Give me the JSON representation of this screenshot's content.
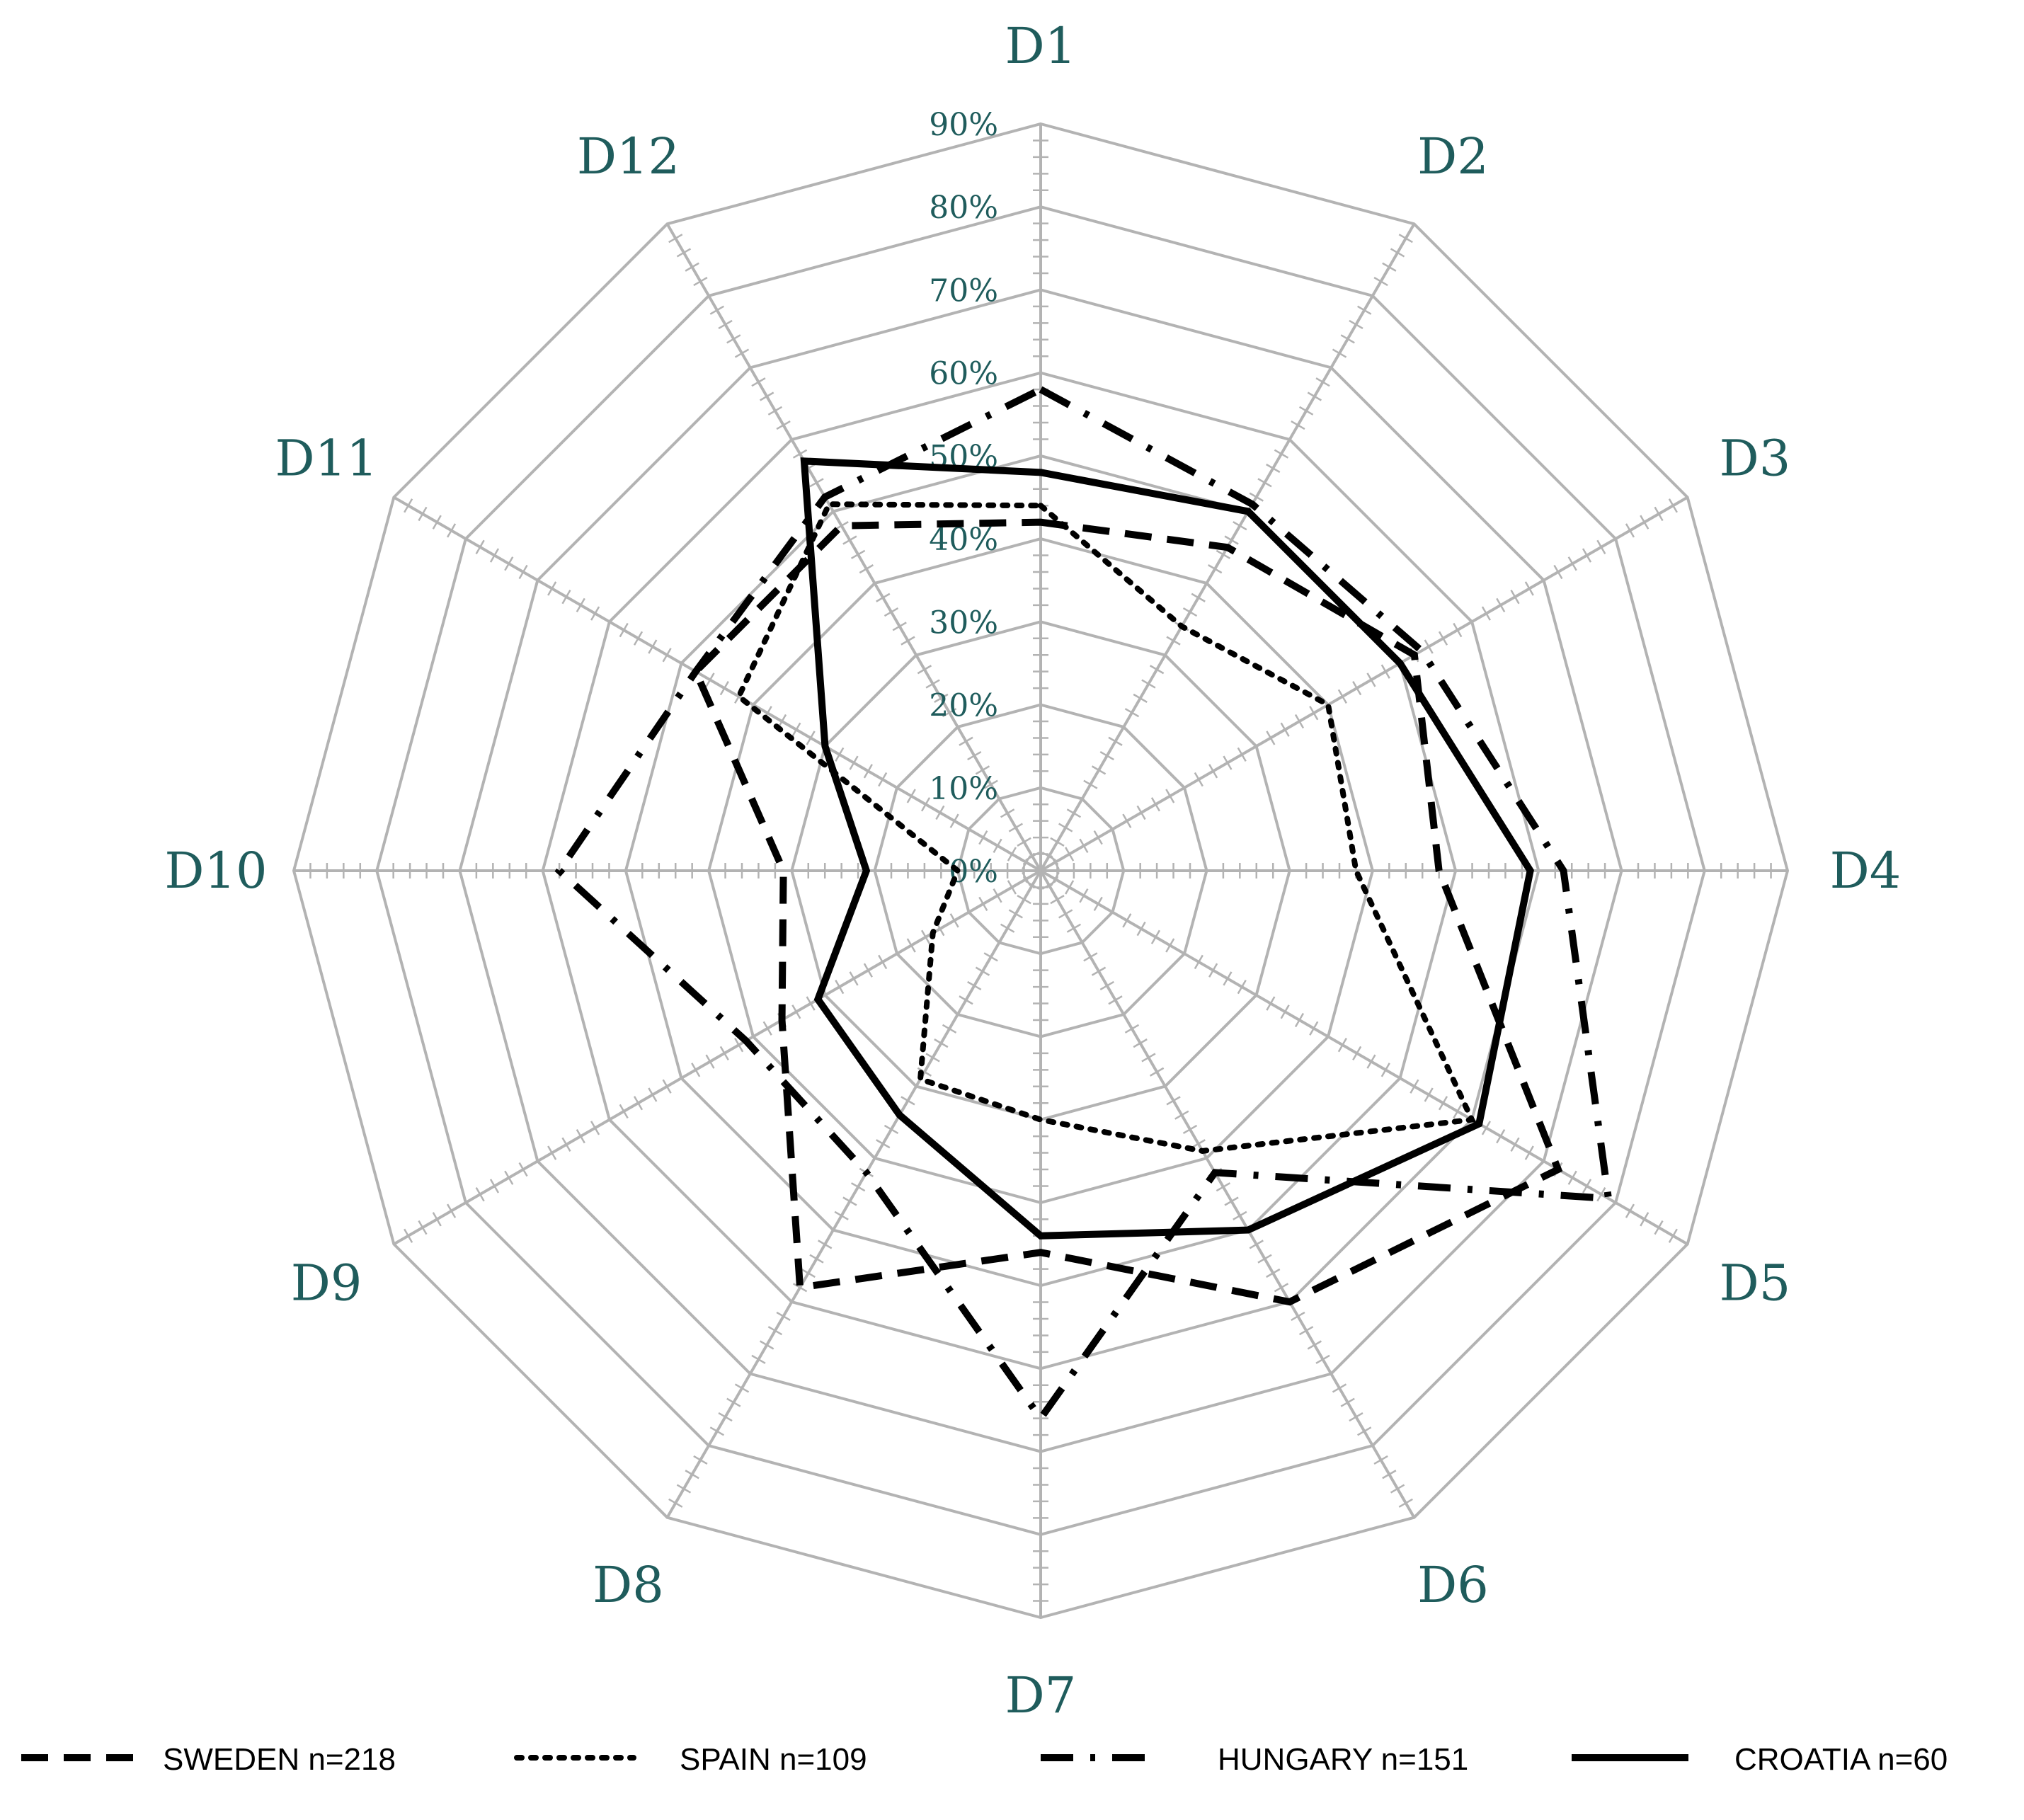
{
  "chart_data": {
    "type": "radar",
    "axes": [
      "D1",
      "D2",
      "D3",
      "D4",
      "D5",
      "D6",
      "D7",
      "D8",
      "D9",
      "D10",
      "D11",
      "D12"
    ],
    "tick_labels": [
      "0%",
      "10%",
      "20%",
      "30%",
      "40%",
      "50%",
      "60%",
      "70%",
      "80%",
      "90%"
    ],
    "range": [
      0,
      90
    ],
    "grid": true,
    "legend_position": "bottom",
    "series": [
      {
        "name": "SWEDEN n=218",
        "style": "dashed",
        "values": [
          42,
          45,
          52,
          48,
          72,
          60,
          46,
          58,
          36,
          31,
          48,
          48
        ]
      },
      {
        "name": "SPAIN n=109",
        "style": "dotted",
        "values": [
          44,
          34,
          40,
          38,
          60,
          39,
          30,
          29,
          15,
          10,
          42,
          51
        ]
      },
      {
        "name": "HUNGARY n=151",
        "style": "dash-dot",
        "values": [
          58,
          51,
          53,
          63,
          79,
          42,
          66,
          42,
          41,
          58,
          48,
          52
        ]
      },
      {
        "name": "CROATIA n=60",
        "style": "solid",
        "values": [
          48,
          50,
          50,
          59,
          61,
          50,
          44,
          34,
          31,
          21,
          30,
          57
        ]
      }
    ],
    "colors": {
      "line": "#000000",
      "grid": "#b3b3b3",
      "label": "#1f5c5c"
    }
  }
}
